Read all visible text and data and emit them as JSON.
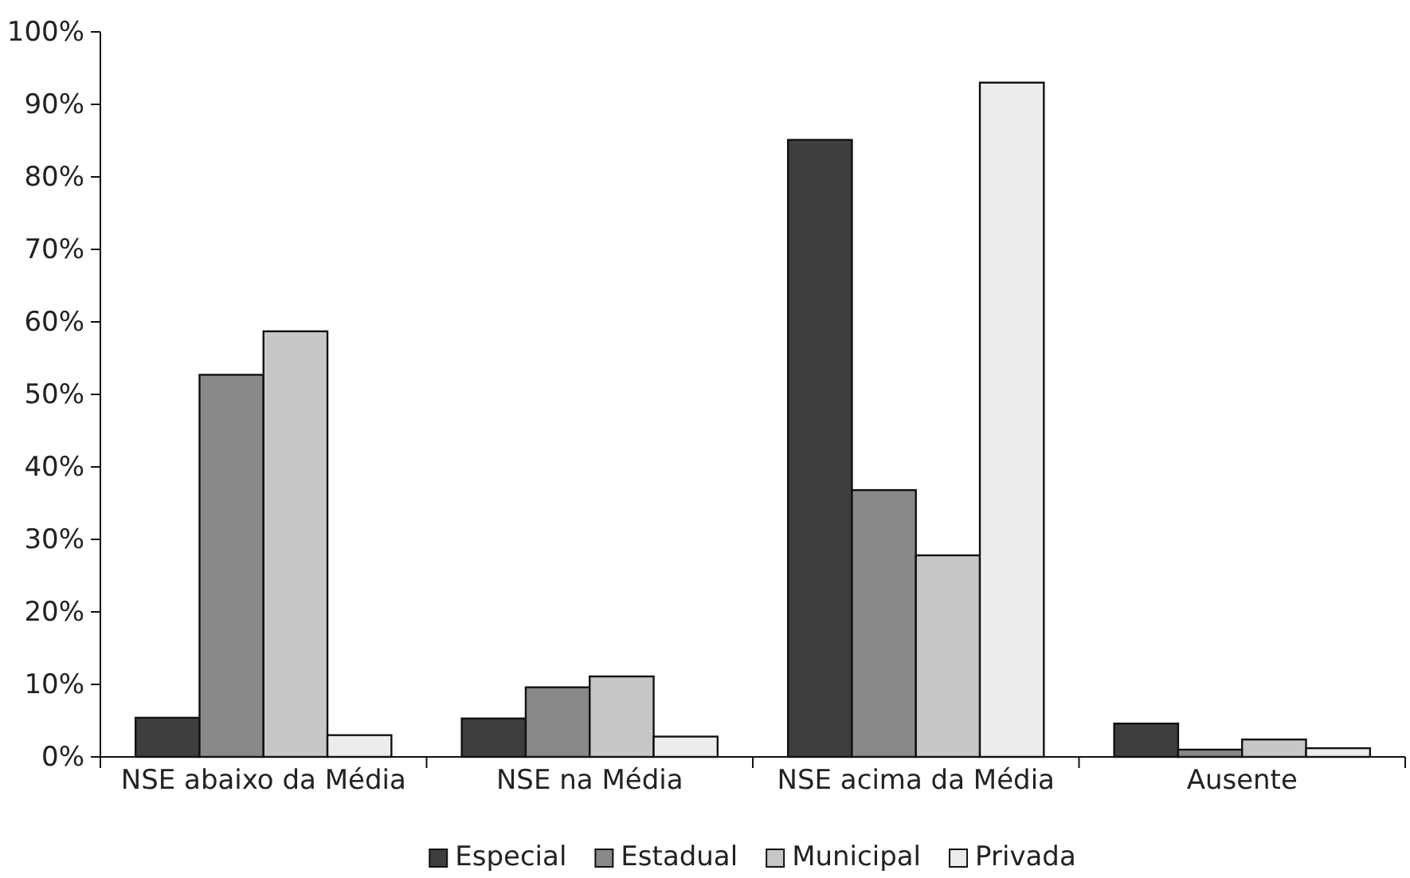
{
  "chart_data": {
    "type": "bar",
    "categories": [
      "NSE abaixo da Média",
      "NSE na Média",
      "NSE acima da Média",
      "Ausente"
    ],
    "series": [
      {
        "name": "Especial",
        "color": "#3e3e40",
        "values": [
          5.4,
          5.3,
          85.1,
          4.6
        ]
      },
      {
        "name": "Estadual",
        "color": "#88898b",
        "values": [
          52.7,
          9.6,
          36.8,
          1.0
        ]
      },
      {
        "name": "Municipal",
        "color": "#c6c7c9",
        "values": [
          58.7,
          11.1,
          27.8,
          2.4
        ]
      },
      {
        "name": "Privada",
        "color": "#ebeceb",
        "values": [
          3.0,
          2.8,
          93.0,
          1.2
        ]
      }
    ],
    "ylim": [
      0,
      100
    ],
    "yticks": [
      {
        "value": 0,
        "label": "0%"
      },
      {
        "value": 10,
        "label": "10%"
      },
      {
        "value": 20,
        "label": "20%"
      },
      {
        "value": 30,
        "label": "30%"
      },
      {
        "value": 40,
        "label": "40%"
      },
      {
        "value": 50,
        "label": "50%"
      },
      {
        "value": 60,
        "label": "60%"
      },
      {
        "value": 70,
        "label": "70%"
      },
      {
        "value": 80,
        "label": "80%"
      },
      {
        "value": 90,
        "label": "90%"
      },
      {
        "value": 100,
        "label": "100%"
      }
    ],
    "legend": "bottom"
  }
}
